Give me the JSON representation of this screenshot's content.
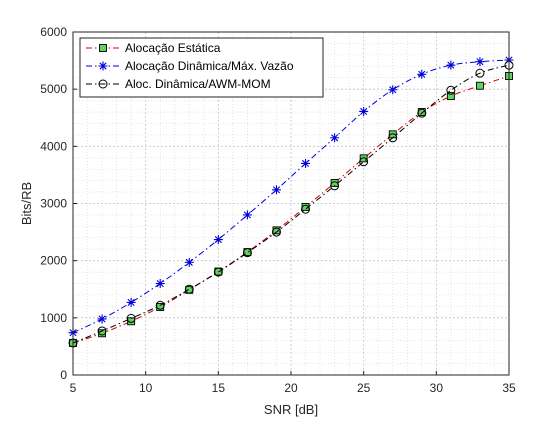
{
  "chart_data": {
    "type": "line",
    "title": "",
    "xlabel": "SNR [dB]",
    "ylabel": "Bits/RB",
    "xlim": [
      5,
      35
    ],
    "ylim": [
      0,
      6000
    ],
    "xticks": [
      5,
      10,
      15,
      20,
      25,
      30,
      35
    ],
    "yticks": [
      0,
      1000,
      2000,
      3000,
      4000,
      5000,
      6000
    ],
    "grid": true,
    "minor_grid": true,
    "legend_position": "top-left",
    "x": [
      5,
      7,
      9,
      11,
      13,
      15,
      17,
      19,
      21,
      23,
      25,
      27,
      29,
      31,
      33,
      35
    ],
    "series": [
      {
        "name": "Alocação Estática",
        "color": "#d40000",
        "line_style": "dash-dot",
        "marker": "square",
        "marker_fill": "#5fd35f",
        "values": [
          560,
          730,
          940,
          1190,
          1490,
          1810,
          2150,
          2530,
          2940,
          3360,
          3790,
          4210,
          4600,
          4880,
          5060,
          5230
        ]
      },
      {
        "name": "Alocação Dinâmica/Máx. Vazão",
        "color": "#0000dd",
        "line_style": "dash-dot",
        "marker": "asterisk",
        "marker_fill": "none",
        "values": [
          740,
          980,
          1270,
          1600,
          1970,
          2370,
          2800,
          3240,
          3700,
          4150,
          4610,
          4990,
          5260,
          5420,
          5480,
          5510
        ]
      },
      {
        "name": "Aloc. Dinâmica/AWM-MOM",
        "color": "#000000",
        "line_style": "dash-dot",
        "marker": "circle",
        "marker_fill": "none",
        "values": [
          560,
          770,
          990,
          1220,
          1500,
          1800,
          2140,
          2500,
          2900,
          3310,
          3730,
          4150,
          4580,
          4980,
          5280,
          5420
        ]
      }
    ]
  }
}
